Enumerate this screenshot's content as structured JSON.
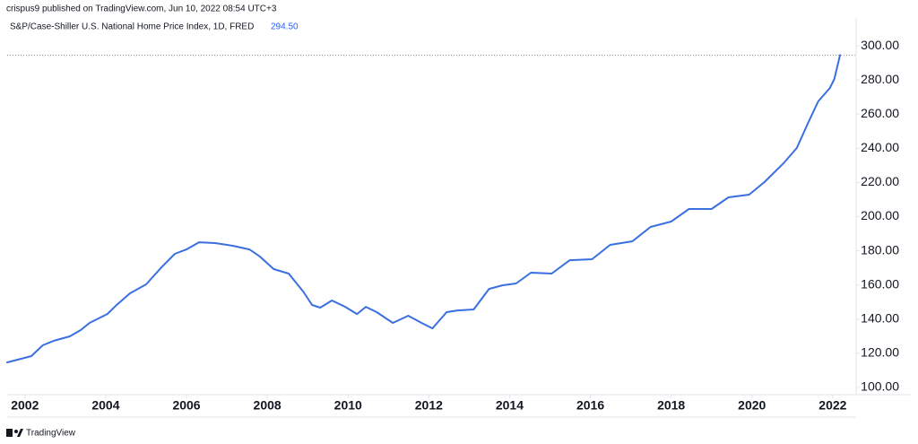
{
  "header": {
    "published": "crispus9 published on TradingView.com, Jun 10, 2022 08:54 UTC+3",
    "brand": "TradingView"
  },
  "chart_data": {
    "type": "line",
    "title": "S&P/Case-Shiller U.S. National Home Price Index, 1D, FRED",
    "last_value": {
      "value": 294.5,
      "label": "294.50"
    },
    "color": "#3a6fe0",
    "x": [
      2001.56,
      2001.82,
      2002.16,
      2002.44,
      2002.71,
      2003.11,
      2003.38,
      2003.6,
      2004.04,
      2004.27,
      2004.6,
      2005.0,
      2005.38,
      2005.71,
      2006.0,
      2006.31,
      2006.71,
      2007.16,
      2007.56,
      2007.82,
      2008.16,
      2008.53,
      2008.89,
      2009.11,
      2009.31,
      2009.6,
      2009.93,
      2010.22,
      2010.44,
      2010.71,
      2011.11,
      2011.49,
      2011.82,
      2012.09,
      2012.44,
      2012.71,
      2013.11,
      2013.49,
      2013.82,
      2014.16,
      2014.53,
      2015.04,
      2015.49,
      2016.04,
      2016.49,
      2017.04,
      2017.49,
      2018.0,
      2018.44,
      2019.0,
      2019.42,
      2019.93,
      2020.31,
      2020.78,
      2021.11,
      2021.38,
      2021.64,
      2021.93,
      2022.04,
      2022.18
    ],
    "values": [
      114.7,
      116.3,
      118.4,
      124.7,
      127.3,
      129.9,
      133.6,
      137.8,
      143,
      148.3,
      155.1,
      160.4,
      170.3,
      178.2,
      180.8,
      185,
      184.5,
      182.9,
      180.8,
      176.6,
      169.3,
      166.7,
      156.2,
      148.3,
      146.7,
      150.9,
      147.2,
      143,
      147.2,
      144.1,
      137.8,
      142,
      137.8,
      134.6,
      144.1,
      145.1,
      145.7,
      157.7,
      159.8,
      160.9,
      167.2,
      166.7,
      174.5,
      175.1,
      183.5,
      185.6,
      194,
      197.1,
      204.5,
      204.5,
      211.3,
      212.9,
      220.2,
      231.2,
      240.2,
      254.3,
      267.5,
      275.3,
      280.6,
      294.5
    ],
    "xlim": [
      2001.56,
      2022.58
    ],
    "ylim": [
      95.8,
      316.3
    ],
    "xticks": [
      2002,
      2004,
      2006,
      2008,
      2010,
      2012,
      2014,
      2016,
      2018,
      2020,
      2022
    ],
    "yticks": [
      {
        "value": 100,
        "label": "100.00"
      },
      {
        "value": 120,
        "label": "120.00"
      },
      {
        "value": 140,
        "label": "140.00"
      },
      {
        "value": 160,
        "label": "160.00"
      },
      {
        "value": 180,
        "label": "180.00"
      },
      {
        "value": 200,
        "label": "200.00"
      },
      {
        "value": 220,
        "label": "220.00"
      },
      {
        "value": 240,
        "label": "240.00"
      },
      {
        "value": 260,
        "label": "260.00"
      },
      {
        "value": 280,
        "label": "280.00"
      },
      {
        "value": 300,
        "label": "300.00"
      }
    ],
    "grid": false
  }
}
